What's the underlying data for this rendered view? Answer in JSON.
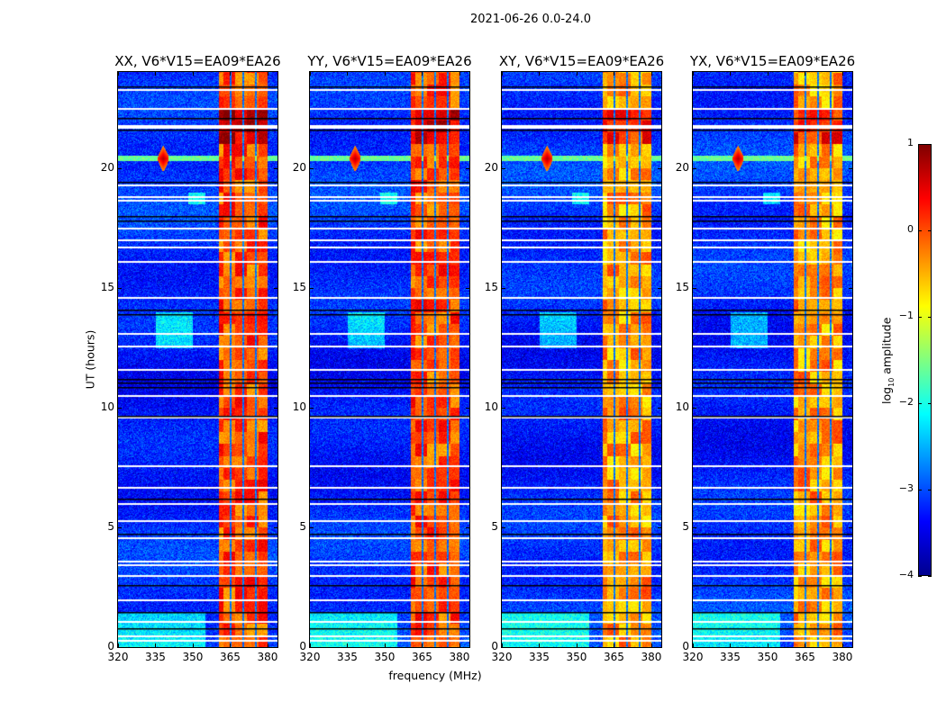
{
  "suptitle": "2021-06-26 0.0-24.0",
  "chart_data": {
    "type": "heatmap",
    "title": "2021-06-26 0.0-24.0",
    "xlabel": "frequency (MHz)",
    "ylabel": "UT (hours)",
    "xlim": [
      320,
      384
    ],
    "ylim": [
      0,
      24
    ],
    "xticks": [
      "320",
      "335",
      "350",
      "365",
      "380"
    ],
    "yticks": [
      "0",
      "5",
      "10",
      "15",
      "20"
    ],
    "colorbar": {
      "label_main": "log",
      "label_sub": "10",
      "label_rest": " amplitude",
      "clim": [
        -4,
        1
      ],
      "ticks": [
        "1",
        "0",
        "−1",
        "−2",
        "−3",
        "−4"
      ],
      "colormap": "jet"
    },
    "panels": [
      {
        "title": "XX, V6*V15=EA09*EA26",
        "band_level": 0.1
      },
      {
        "title": "YY, V6*V15=EA09*EA26",
        "band_level": 0.1
      },
      {
        "title": "XY, V6*V15=EA09*EA26",
        "band_level": -0.3
      },
      {
        "title": "YX, V6*V15=EA09*EA26",
        "band_level": -0.3
      }
    ],
    "background_level": -3.2,
    "bright_band_mhz": [
      360.4,
      380
    ],
    "subband_edges_mhz": [
      365.1,
      370.1,
      375.2
    ],
    "rfi_burst": {
      "time_h": 20.4,
      "peak_freq_mhz": 338,
      "level": 0.8
    },
    "flagged_times_h": [
      23.3,
      22.5,
      21.8,
      21.7,
      19.3,
      18.8,
      18.65,
      17.5,
      17.0,
      16.7,
      16.1,
      14.6,
      13.1,
      12.6,
      11.6,
      10.5,
      9.6,
      7.6,
      6.7,
      6.0,
      5.3,
      4.6,
      3.6,
      3.45,
      3.0,
      2.0,
      1.1,
      0.5,
      0.3
    ],
    "dropout_times_h": [
      23.4,
      22.1,
      21.6,
      19.4,
      18.0,
      17.8,
      14.1,
      13.9,
      11.2,
      11.05,
      10.85,
      9.65,
      6.2,
      4.75,
      2.6,
      1.45,
      0.8
    ]
  }
}
